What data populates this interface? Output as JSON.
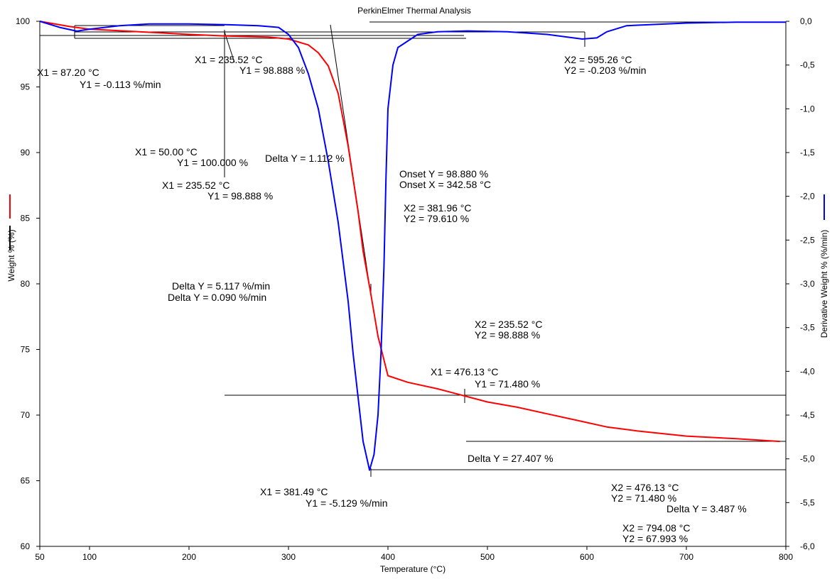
{
  "chart_data": {
    "type": "line",
    "title": "PerkinElmer Thermal Analysis",
    "xlabel": "Temperature (°C)",
    "ylabel_left": "Weight % (%)",
    "ylabel_right": "Derivative Weight % (%/min)",
    "xlim": [
      50,
      800
    ],
    "ylim_left": [
      60,
      100
    ],
    "ylim_right": [
      -6.0,
      0.0
    ],
    "grid": false,
    "x_ticks": [
      "50",
      "100",
      "200",
      "300",
      "400",
      "500",
      "600",
      "700",
      "800"
    ],
    "y_left_ticks": [
      "60",
      "65",
      "70",
      "75",
      "80",
      "85",
      "90",
      "95",
      "100"
    ],
    "y_right_ticks": [
      "0,0",
      "-0,5",
      "-1,0",
      "-1,5",
      "-2,0",
      "-2,5",
      "-3,0",
      "-3,5",
      "-4,0",
      "-4,5",
      "-5,0",
      "-5,5",
      "-6,0"
    ],
    "series": [
      {
        "axis": "left",
        "color": "#ff0000",
        "x": [
          50,
          80,
          100,
          150,
          200,
          235.52,
          280,
          300,
          320,
          330,
          340,
          350,
          360,
          365,
          370,
          375,
          381.96,
          390,
          395,
          400,
          420,
          450,
          476.13,
          500,
          530,
          560,
          590,
          620,
          650,
          700,
          750,
          794.08
        ],
        "y": [
          100,
          99.6,
          99.4,
          99.2,
          99.0,
          98.888,
          98.8,
          98.65,
          98.2,
          97.6,
          96.6,
          94.5,
          90.5,
          88.0,
          85.5,
          82.5,
          79.61,
          76.0,
          74.5,
          73.0,
          72.5,
          72.0,
          71.48,
          71.0,
          70.6,
          70.1,
          69.6,
          69.1,
          68.8,
          68.4,
          68.2,
          67.993
        ]
      },
      {
        "axis": "right",
        "color": "#0000ff",
        "x": [
          50,
          70,
          87.2,
          100,
          130,
          160,
          200,
          240,
          270,
          290,
          300,
          310,
          320,
          330,
          340,
          350,
          360,
          365,
          370,
          375,
          381.49,
          386,
          390,
          393,
          396,
          398,
          400,
          405,
          410,
          430,
          450,
          480,
          520,
          560,
          595.26,
          610,
          620,
          640,
          700,
          750,
          800
        ],
        "y": [
          0.0,
          -0.07,
          -0.113,
          -0.09,
          -0.05,
          -0.03,
          -0.03,
          -0.04,
          -0.05,
          -0.07,
          -0.15,
          -0.3,
          -0.6,
          -1.0,
          -1.6,
          -2.3,
          -3.2,
          -3.8,
          -4.3,
          -4.8,
          -5.129,
          -4.95,
          -4.5,
          -3.8,
          -2.8,
          -1.8,
          -1.0,
          -0.5,
          -0.3,
          -0.15,
          -0.12,
          -0.11,
          -0.12,
          -0.15,
          -0.203,
          -0.19,
          -0.12,
          -0.05,
          -0.02,
          -0.01,
          -0.01
        ]
      }
    ],
    "annotations": [
      "X1 = 87.20 °C",
      "Y1 = -0.113 %/min",
      "X1 = 235.52 °C",
      "Y1 = 98.888 %",
      "X2 = 595.26 °C",
      "Y2 = -0.203 %/min",
      "X1 = 50.00 °C",
      "Y1 = 100.000 %",
      "Delta Y = 1.112 %",
      "X1 = 235.52 °C",
      "Y1 = 98.888 %",
      "Onset Y = 98.880 %",
      "Onset X = 342.58 °C",
      "X2 = 381.96 °C",
      "Y2 = 79.610 %",
      "Delta Y = 5.117 %/min",
      "Delta Y = 0.090 %/min",
      "X2 = 235.52 °C",
      "Y2 = 98.888 %",
      "X1 = 476.13 °C",
      "Y1 = 71.480 %",
      "Delta Y = 27.407 %",
      "X1 = 381.49 °C",
      "Y1 = -5.129 %/min",
      "X2 = 476.13 °C",
      "Y2 = 71.480 %",
      "Delta Y = 3.487 %",
      "X2 = 794.08 °C",
      "Y2 = 67.993 %"
    ]
  }
}
